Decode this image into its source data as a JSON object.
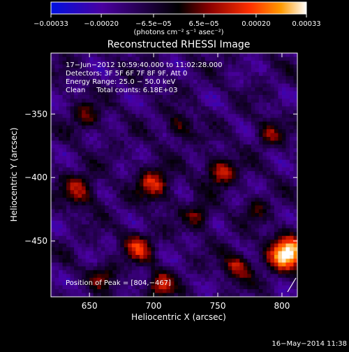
{
  "chart_data": {
    "type": "heatmap",
    "title": "Reconstructed RHESSI Image",
    "xlabel": "Heliocentric X (arcsec)",
    "ylabel": "Heliocentric Y (arcsec)",
    "xlim": [
      620,
      812
    ],
    "ylim": [
      -494,
      -302
    ],
    "x_ticks": [
      650,
      700,
      750,
      800
    ],
    "x_tick_labels": [
      "650",
      "700",
      "750",
      "800"
    ],
    "y_ticks": [
      -350,
      -400,
      -450
    ],
    "y_tick_labels": [
      "−350",
      "−400",
      "−450"
    ],
    "colorbar": {
      "range": [
        -0.00033,
        0.00033
      ],
      "ticks": [
        -0.00033,
        -0.0002,
        -6.5e-05,
        6.5e-05,
        0.0002,
        0.00033
      ],
      "tick_labels": [
        "−0.00033",
        "−0.00020",
        "−6.5e−05",
        "6.5e−05",
        "0.00020",
        "0.00033"
      ],
      "units_label": "(photons cm⁻² s⁻¹ asec⁻²)",
      "colors": [
        "#0010e0",
        "#4a00a0",
        "#000000",
        "#8a0000",
        "#ff3000",
        "#ff9a00",
        "#ffffff"
      ]
    },
    "annotations": [
      "17−Jun−2012 10:59:40.000 to 11:02:28.000",
      "Detectors: 3F 5F 6F 7F 8F 9F, Att 0",
      "Energy Range: 25.0 − 50.0 keV",
      "Clean     Total counts: 6.18E+03"
    ],
    "peak_label": "Position of Peak = [804,−467]",
    "peak": [
      804,
      -467
    ],
    "sources": [
      {
        "x": 804,
        "y": -460,
        "sigma": 10,
        "amp": 2.6
      },
      {
        "x": 700,
        "y": -405,
        "sigma": 9,
        "amp": 1.5
      },
      {
        "x": 752,
        "y": -395,
        "sigma": 8,
        "amp": 1.5
      },
      {
        "x": 688,
        "y": -455,
        "sigma": 8,
        "amp": 1.4
      },
      {
        "x": 705,
        "y": -485,
        "sigma": 7,
        "amp": 1.5
      },
      {
        "x": 765,
        "y": -470,
        "sigma": 8,
        "amp": 1.3
      },
      {
        "x": 642,
        "y": -410,
        "sigma": 9,
        "amp": 1.2
      },
      {
        "x": 720,
        "y": -360,
        "sigma": 7,
        "amp": 1.0
      },
      {
        "x": 648,
        "y": -352,
        "sigma": 8,
        "amp": 0.9
      },
      {
        "x": 790,
        "y": -365,
        "sigma": 7,
        "amp": 1.0
      },
      {
        "x": 735,
        "y": -430,
        "sigma": 7,
        "amp": 1.1
      },
      {
        "x": 660,
        "y": -478,
        "sigma": 7,
        "amp": 0.9
      },
      {
        "x": 780,
        "y": -425,
        "sigma": 6,
        "amp": 0.8
      }
    ]
  },
  "footer": {
    "timestamp": "16−May−2014 11:38"
  }
}
